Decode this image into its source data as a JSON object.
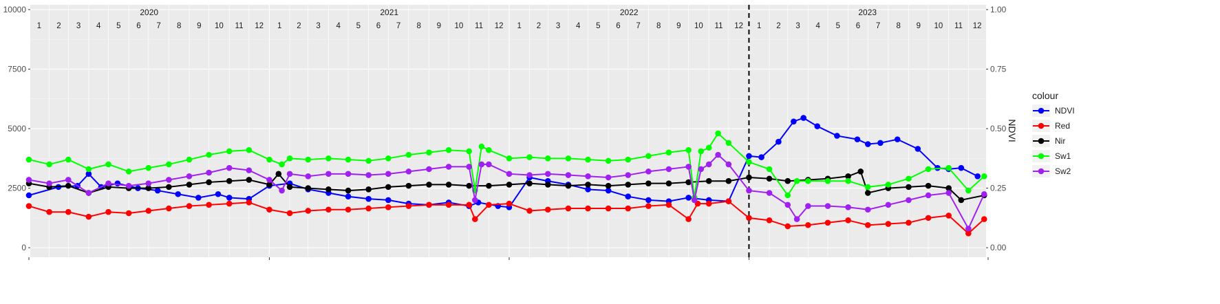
{
  "chart_data": {
    "type": "line",
    "x_domain": [
      "2020-01-01",
      "2023-12-31"
    ],
    "years": [
      "2020",
      "2021",
      "2022",
      "2023"
    ],
    "month_labels": [
      "1",
      "2",
      "3",
      "4",
      "5",
      "6",
      "7",
      "8",
      "9",
      "10",
      "11",
      "12"
    ],
    "y_left": {
      "range": [
        -400,
        10200
      ],
      "ticks": [
        0,
        2500,
        5000,
        7500,
        10000
      ],
      "tick_labels": [
        "0",
        "2500",
        "5000",
        "7500",
        "10000"
      ]
    },
    "y_right": {
      "label": "NDVI",
      "range": [
        -0.04,
        1.02
      ],
      "ticks": [
        0,
        0.25,
        0.5,
        0.75,
        1.0
      ],
      "tick_labels": [
        "0.00",
        "0.25",
        "0.50",
        "0.75",
        "1.00"
      ]
    },
    "vline_date": "2023-01-01",
    "legend": {
      "title": "colour",
      "position": "right"
    },
    "series": [
      {
        "name": "NDVI",
        "color": "#0000ff",
        "axis": "right",
        "points": [
          [
            "2020-01-01",
            0.22
          ],
          [
            "2020-02-15",
            0.255
          ],
          [
            "2020-03-15",
            0.26
          ],
          [
            "2020-04-01",
            0.31
          ],
          [
            "2020-04-20",
            0.255
          ],
          [
            "2020-05-15",
            0.27
          ],
          [
            "2020-06-15",
            0.25
          ],
          [
            "2020-07-15",
            0.24
          ],
          [
            "2020-08-15",
            0.225
          ],
          [
            "2020-09-15",
            0.21
          ],
          [
            "2020-10-15",
            0.225
          ],
          [
            "2020-11-01",
            0.21
          ],
          [
            "2020-12-01",
            0.205
          ],
          [
            "2021-01-01",
            0.26
          ],
          [
            "2021-02-01",
            0.27
          ],
          [
            "2021-03-01",
            0.245
          ],
          [
            "2021-04-01",
            0.23
          ],
          [
            "2021-05-01",
            0.215
          ],
          [
            "2021-06-01",
            0.205
          ],
          [
            "2021-07-01",
            0.2
          ],
          [
            "2021-08-01",
            0.185
          ],
          [
            "2021-09-01",
            0.18
          ],
          [
            "2021-10-01",
            0.19
          ],
          [
            "2021-11-01",
            0.175
          ],
          [
            "2021-11-15",
            0.19
          ],
          [
            "2021-12-15",
            0.175
          ],
          [
            "2022-01-01",
            0.17
          ],
          [
            "2022-02-01",
            0.295
          ],
          [
            "2022-03-01",
            0.28
          ],
          [
            "2022-04-01",
            0.265
          ],
          [
            "2022-05-01",
            0.245
          ],
          [
            "2022-06-01",
            0.24
          ],
          [
            "2022-07-01",
            0.215
          ],
          [
            "2022-08-01",
            0.2
          ],
          [
            "2022-09-01",
            0.195
          ],
          [
            "2022-10-01",
            0.21
          ],
          [
            "2022-11-01",
            0.2
          ],
          [
            "2022-12-01",
            0.195
          ],
          [
            "2023-01-01",
            0.385
          ],
          [
            "2023-01-20",
            0.38
          ],
          [
            "2023-02-15",
            0.445
          ],
          [
            "2023-03-10",
            0.53
          ],
          [
            "2023-03-25",
            0.545
          ],
          [
            "2023-04-15",
            0.51
          ],
          [
            "2023-05-15",
            0.47
          ],
          [
            "2023-06-15",
            0.455
          ],
          [
            "2023-07-01",
            0.435
          ],
          [
            "2023-07-20",
            0.44
          ],
          [
            "2023-08-15",
            0.455
          ],
          [
            "2023-09-15",
            0.415
          ],
          [
            "2023-10-15",
            0.335
          ],
          [
            "2023-11-01",
            0.33
          ],
          [
            "2023-11-20",
            0.335
          ],
          [
            "2023-12-15",
            0.3
          ]
        ]
      },
      {
        "name": "Red",
        "color": "#ff0000",
        "axis": "left",
        "points": [
          [
            "2020-01-01",
            1750
          ],
          [
            "2020-02-01",
            1500
          ],
          [
            "2020-03-01",
            1500
          ],
          [
            "2020-04-01",
            1300
          ],
          [
            "2020-05-01",
            1500
          ],
          [
            "2020-06-01",
            1450
          ],
          [
            "2020-07-01",
            1550
          ],
          [
            "2020-08-01",
            1650
          ],
          [
            "2020-09-01",
            1750
          ],
          [
            "2020-10-01",
            1800
          ],
          [
            "2020-11-01",
            1850
          ],
          [
            "2020-12-01",
            1900
          ],
          [
            "2021-01-01",
            1600
          ],
          [
            "2021-02-01",
            1450
          ],
          [
            "2021-03-01",
            1550
          ],
          [
            "2021-04-01",
            1600
          ],
          [
            "2021-05-01",
            1600
          ],
          [
            "2021-06-01",
            1650
          ],
          [
            "2021-07-01",
            1700
          ],
          [
            "2021-08-01",
            1750
          ],
          [
            "2021-09-01",
            1800
          ],
          [
            "2021-10-01",
            1800
          ],
          [
            "2021-11-01",
            1800
          ],
          [
            "2021-11-10",
            1200
          ],
          [
            "2021-12-01",
            1800
          ],
          [
            "2022-01-01",
            1850
          ],
          [
            "2022-02-01",
            1550
          ],
          [
            "2022-03-01",
            1600
          ],
          [
            "2022-04-01",
            1650
          ],
          [
            "2022-05-01",
            1650
          ],
          [
            "2022-06-01",
            1650
          ],
          [
            "2022-07-01",
            1650
          ],
          [
            "2022-08-01",
            1750
          ],
          [
            "2022-09-01",
            1800
          ],
          [
            "2022-10-01",
            1200
          ],
          [
            "2022-10-15",
            1850
          ],
          [
            "2022-11-01",
            1850
          ],
          [
            "2022-12-01",
            1950
          ],
          [
            "2023-01-01",
            1250
          ],
          [
            "2023-02-01",
            1150
          ],
          [
            "2023-03-01",
            900
          ],
          [
            "2023-04-01",
            950
          ],
          [
            "2023-05-01",
            1050
          ],
          [
            "2023-06-01",
            1150
          ],
          [
            "2023-07-01",
            950
          ],
          [
            "2023-08-01",
            1000
          ],
          [
            "2023-09-01",
            1050
          ],
          [
            "2023-10-01",
            1250
          ],
          [
            "2023-11-01",
            1350
          ],
          [
            "2023-12-01",
            600
          ],
          [
            "2023-12-25",
            1200
          ]
        ]
      },
      {
        "name": "Nir",
        "color": "#000000",
        "axis": "left",
        "points": [
          [
            "2020-01-01",
            2700
          ],
          [
            "2020-02-01",
            2550
          ],
          [
            "2020-03-01",
            2600
          ],
          [
            "2020-04-01",
            2300
          ],
          [
            "2020-05-01",
            2550
          ],
          [
            "2020-06-01",
            2500
          ],
          [
            "2020-07-01",
            2500
          ],
          [
            "2020-08-01",
            2550
          ],
          [
            "2020-09-01",
            2650
          ],
          [
            "2020-10-01",
            2750
          ],
          [
            "2020-11-01",
            2800
          ],
          [
            "2020-12-01",
            2850
          ],
          [
            "2021-01-01",
            2650
          ],
          [
            "2021-01-15",
            3100
          ],
          [
            "2021-02-01",
            2550
          ],
          [
            "2021-03-01",
            2500
          ],
          [
            "2021-04-01",
            2450
          ],
          [
            "2021-05-01",
            2400
          ],
          [
            "2021-06-01",
            2450
          ],
          [
            "2021-07-01",
            2550
          ],
          [
            "2021-08-01",
            2600
          ],
          [
            "2021-09-01",
            2650
          ],
          [
            "2021-10-01",
            2650
          ],
          [
            "2021-11-01",
            2600
          ],
          [
            "2021-12-01",
            2600
          ],
          [
            "2022-01-01",
            2650
          ],
          [
            "2022-02-01",
            2700
          ],
          [
            "2022-03-01",
            2650
          ],
          [
            "2022-04-01",
            2600
          ],
          [
            "2022-05-01",
            2650
          ],
          [
            "2022-06-01",
            2600
          ],
          [
            "2022-07-01",
            2650
          ],
          [
            "2022-08-01",
            2700
          ],
          [
            "2022-09-01",
            2700
          ],
          [
            "2022-10-01",
            2750
          ],
          [
            "2022-11-01",
            2800
          ],
          [
            "2022-12-01",
            2800
          ],
          [
            "2023-01-01",
            2950
          ],
          [
            "2023-02-01",
            2900
          ],
          [
            "2023-03-01",
            2800
          ],
          [
            "2023-04-01",
            2850
          ],
          [
            "2023-05-01",
            2900
          ],
          [
            "2023-06-01",
            3000
          ],
          [
            "2023-06-20",
            3200
          ],
          [
            "2023-07-01",
            2300
          ],
          [
            "2023-08-01",
            2500
          ],
          [
            "2023-09-01",
            2550
          ],
          [
            "2023-10-01",
            2600
          ],
          [
            "2023-11-01",
            2500
          ],
          [
            "2023-11-20",
            2000
          ],
          [
            "2023-12-25",
            2200
          ]
        ]
      },
      {
        "name": "Sw1",
        "color": "#00ff00",
        "axis": "left",
        "points": [
          [
            "2020-01-01",
            3700
          ],
          [
            "2020-02-01",
            3500
          ],
          [
            "2020-03-01",
            3700
          ],
          [
            "2020-04-01",
            3300
          ],
          [
            "2020-05-01",
            3500
          ],
          [
            "2020-06-01",
            3200
          ],
          [
            "2020-07-01",
            3350
          ],
          [
            "2020-08-01",
            3500
          ],
          [
            "2020-09-01",
            3700
          ],
          [
            "2020-10-01",
            3900
          ],
          [
            "2020-11-01",
            4050
          ],
          [
            "2020-12-01",
            4100
          ],
          [
            "2021-01-01",
            3700
          ],
          [
            "2021-01-20",
            3500
          ],
          [
            "2021-02-01",
            3750
          ],
          [
            "2021-03-01",
            3700
          ],
          [
            "2021-04-01",
            3750
          ],
          [
            "2021-05-01",
            3700
          ],
          [
            "2021-06-01",
            3650
          ],
          [
            "2021-07-01",
            3750
          ],
          [
            "2021-08-01",
            3900
          ],
          [
            "2021-09-01",
            4000
          ],
          [
            "2021-10-01",
            4100
          ],
          [
            "2021-11-01",
            4050
          ],
          [
            "2021-11-10",
            2400
          ],
          [
            "2021-11-20",
            4250
          ],
          [
            "2021-12-01",
            4100
          ],
          [
            "2022-01-01",
            3750
          ],
          [
            "2022-02-01",
            3800
          ],
          [
            "2022-03-01",
            3750
          ],
          [
            "2022-04-01",
            3750
          ],
          [
            "2022-05-01",
            3700
          ],
          [
            "2022-06-01",
            3650
          ],
          [
            "2022-07-01",
            3700
          ],
          [
            "2022-08-01",
            3850
          ],
          [
            "2022-09-01",
            4000
          ],
          [
            "2022-10-01",
            4100
          ],
          [
            "2022-10-10",
            2100
          ],
          [
            "2022-10-20",
            4050
          ],
          [
            "2022-11-01",
            4200
          ],
          [
            "2022-11-15",
            4800
          ],
          [
            "2022-12-01",
            4400
          ],
          [
            "2023-01-01",
            3600
          ],
          [
            "2023-02-01",
            3300
          ],
          [
            "2023-03-01",
            2200
          ],
          [
            "2023-03-15",
            2800
          ],
          [
            "2023-04-01",
            2800
          ],
          [
            "2023-05-01",
            2800
          ],
          [
            "2023-06-01",
            2800
          ],
          [
            "2023-07-01",
            2550
          ],
          [
            "2023-08-01",
            2650
          ],
          [
            "2023-09-01",
            2900
          ],
          [
            "2023-10-01",
            3300
          ],
          [
            "2023-11-01",
            3350
          ],
          [
            "2023-12-01",
            2400
          ],
          [
            "2023-12-25",
            3000
          ]
        ]
      },
      {
        "name": "Sw2",
        "color": "#a020f0",
        "axis": "left",
        "points": [
          [
            "2020-01-01",
            2850
          ],
          [
            "2020-02-01",
            2700
          ],
          [
            "2020-03-01",
            2850
          ],
          [
            "2020-04-01",
            2300
          ],
          [
            "2020-05-01",
            2700
          ],
          [
            "2020-06-01",
            2600
          ],
          [
            "2020-07-01",
            2700
          ],
          [
            "2020-08-01",
            2850
          ],
          [
            "2020-09-01",
            3000
          ],
          [
            "2020-10-01",
            3150
          ],
          [
            "2020-11-01",
            3350
          ],
          [
            "2020-12-01",
            3250
          ],
          [
            "2021-01-01",
            2850
          ],
          [
            "2021-01-20",
            2400
          ],
          [
            "2021-02-01",
            3100
          ],
          [
            "2021-03-01",
            3000
          ],
          [
            "2021-04-01",
            3100
          ],
          [
            "2021-05-01",
            3100
          ],
          [
            "2021-06-01",
            3050
          ],
          [
            "2021-07-01",
            3100
          ],
          [
            "2021-08-01",
            3200
          ],
          [
            "2021-09-01",
            3300
          ],
          [
            "2021-10-01",
            3400
          ],
          [
            "2021-11-01",
            3400
          ],
          [
            "2021-11-10",
            2000
          ],
          [
            "2021-11-20",
            3500
          ],
          [
            "2021-12-01",
            3500
          ],
          [
            "2022-01-01",
            3100
          ],
          [
            "2022-02-01",
            3050
          ],
          [
            "2022-03-01",
            3100
          ],
          [
            "2022-04-01",
            3050
          ],
          [
            "2022-05-01",
            3000
          ],
          [
            "2022-06-01",
            2950
          ],
          [
            "2022-07-01",
            3050
          ],
          [
            "2022-08-01",
            3200
          ],
          [
            "2022-09-01",
            3300
          ],
          [
            "2022-10-01",
            3400
          ],
          [
            "2022-10-10",
            2000
          ],
          [
            "2022-10-20",
            3300
          ],
          [
            "2022-11-01",
            3500
          ],
          [
            "2022-11-15",
            3900
          ],
          [
            "2022-12-01",
            3500
          ],
          [
            "2023-01-01",
            2400
          ],
          [
            "2023-02-01",
            2300
          ],
          [
            "2023-03-01",
            1800
          ],
          [
            "2023-03-15",
            1200
          ],
          [
            "2023-04-01",
            1750
          ],
          [
            "2023-05-01",
            1750
          ],
          [
            "2023-06-01",
            1700
          ],
          [
            "2023-07-01",
            1600
          ],
          [
            "2023-08-01",
            1800
          ],
          [
            "2023-09-01",
            2000
          ],
          [
            "2023-10-01",
            2200
          ],
          [
            "2023-11-01",
            2300
          ],
          [
            "2023-12-01",
            800
          ],
          [
            "2023-12-25",
            2250
          ]
        ]
      }
    ]
  }
}
